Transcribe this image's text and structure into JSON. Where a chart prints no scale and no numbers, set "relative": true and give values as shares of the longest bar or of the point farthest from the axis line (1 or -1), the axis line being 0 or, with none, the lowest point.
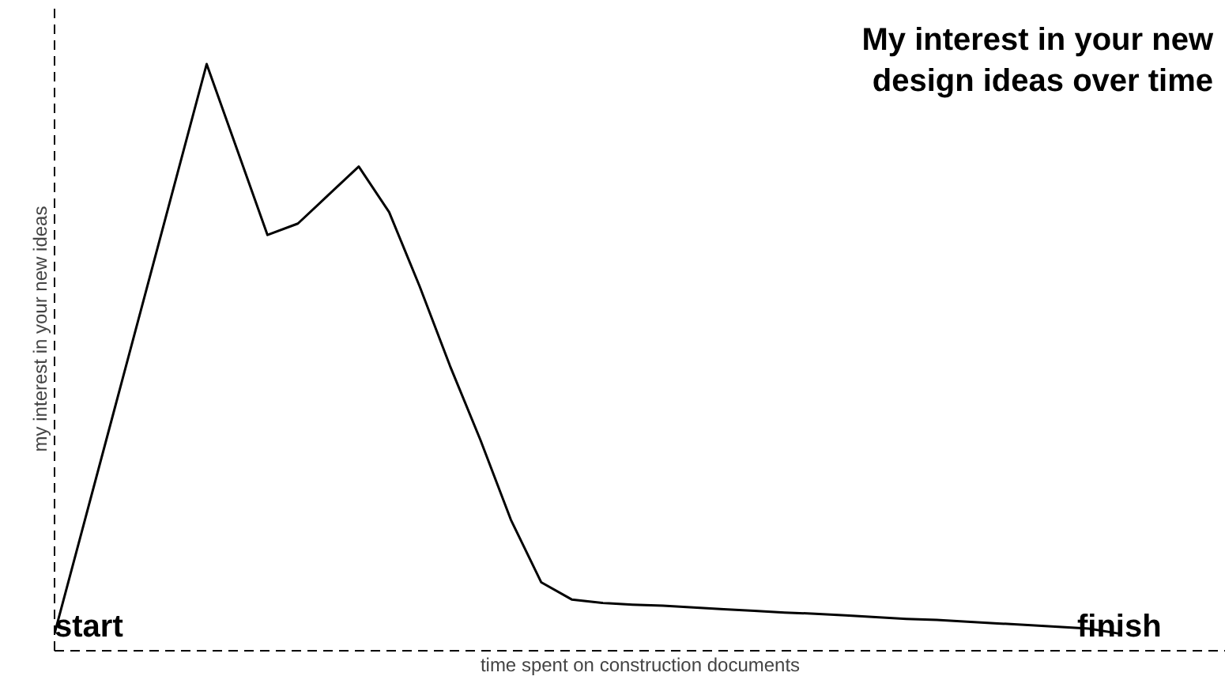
{
  "chart_data": {
    "type": "line",
    "relative": true,
    "title": "My interest in your new\ndesign ideas over time",
    "xlabel": "time spent on construction documents",
    "ylabel": "my interest in your new ideas",
    "categories": [
      null,
      null,
      null,
      null,
      null,
      null,
      null,
      null,
      null,
      null,
      null,
      null,
      null,
      null,
      null,
      null,
      null,
      null,
      null,
      null,
      null,
      null,
      null,
      null,
      null,
      null,
      null,
      null,
      null,
      null,
      null,
      null,
      null,
      null,
      null,
      null
    ],
    "series": [
      {
        "color": "#000000",
        "values": [
          0,
          0.2,
          0.4,
          0.6,
          0.8,
          1.0,
          0.85,
          0.7,
          0.72,
          0.77,
          0.82,
          0.74,
          0.61,
          0.47,
          0.34,
          0.2,
          0.09,
          0.06,
          0.054,
          0.051,
          0.049,
          0.046,
          0.043,
          0.04,
          0.037,
          0.035,
          0.032,
          0.029,
          0.026,
          0.024,
          0.021,
          0.018,
          0.015,
          0.012,
          0.009,
          0
        ]
      }
    ],
    "annotations": [
      "start",
      "finish"
    ],
    "line_style": "solid"
  }
}
